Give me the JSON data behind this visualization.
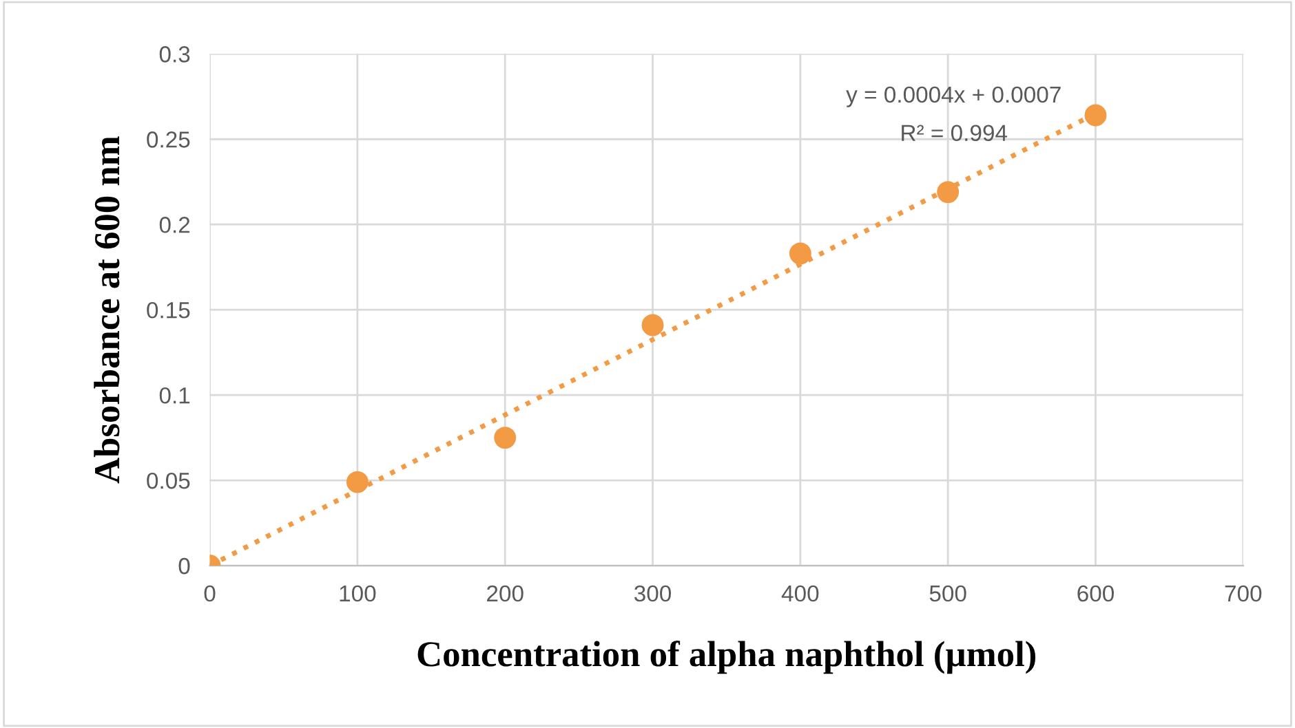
{
  "chart_data": {
    "type": "scatter",
    "xlabel": "Concentration of alpha naphthol (µmol)",
    "ylabel": "Absorbance at 600 nm",
    "annotations": [
      "y = 0.0004x + 0.0007",
      "R² = 0.994"
    ],
    "series": [
      {
        "color": "#f39a45",
        "marker": "circle",
        "x": [
          0,
          100,
          200,
          300,
          400,
          500,
          600
        ],
        "values": [
          0,
          0.049,
          0.075,
          0.141,
          0.183,
          0.219,
          0.264
        ]
      },
      {
        "type": "line",
        "color": "#f39a45",
        "marker": "none",
        "line_style": "dotted",
        "x": [
          0,
          600
        ],
        "values": [
          0,
          0.265
        ]
      }
    ],
    "xlim": [
      0,
      700
    ],
    "xticks": [
      0,
      100,
      200,
      300,
      400,
      500,
      600,
      700
    ],
    "ylim": [
      0,
      0.3
    ],
    "yticks": [
      0,
      0.05,
      0.1,
      0.15,
      0.2,
      0.25,
      0.3
    ],
    "grid": true
  }
}
